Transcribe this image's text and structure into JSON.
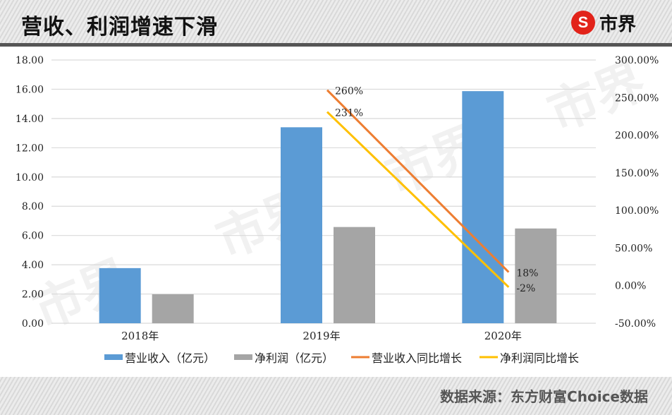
{
  "header": {
    "title": "营收、利润增速下滑",
    "logo_mark": "S",
    "logo_text": "市界"
  },
  "footer": {
    "source": "数据来源：东方财富Choice数据"
  },
  "colors": {
    "revenue_bar": "#5b9bd5",
    "profit_bar": "#a5a5a5",
    "revenue_growth_line": "#ed7d31",
    "profit_growth_line": "#ffc000",
    "gridline": "#d9d9d9",
    "logo_red": "#e2231a"
  },
  "chart_data": {
    "type": "bar",
    "title": "营收、利润增速下滑",
    "categories": [
      "2018年",
      "2019年",
      "2020年"
    ],
    "series": [
      {
        "name": "营业收入（亿元）",
        "type": "bar",
        "axis": "left",
        "values": [
          3.77,
          13.4,
          15.87
        ]
      },
      {
        "name": "净利润（亿元）",
        "type": "bar",
        "axis": "left",
        "values": [
          1.98,
          6.58,
          6.48
        ]
      },
      {
        "name": "营业收入同比增长",
        "type": "line",
        "axis": "right",
        "values": [
          null,
          260,
          18
        ],
        "labels": [
          "",
          "260%",
          "18%"
        ]
      },
      {
        "name": "净利润同比增长",
        "type": "line",
        "axis": "right",
        "values": [
          null,
          231,
          -2
        ],
        "labels": [
          "",
          "231%",
          "-2%"
        ]
      }
    ],
    "left_axis": {
      "ylim": [
        0,
        18
      ],
      "ticks": [
        "0.00",
        "2.00",
        "4.00",
        "6.00",
        "8.00",
        "10.00",
        "12.00",
        "14.00",
        "16.00",
        "18.00"
      ]
    },
    "right_axis": {
      "ylim": [
        -50,
        300
      ],
      "ticks": [
        "-50.00%",
        "0.00%",
        "50.00%",
        "100.00%",
        "150.00%",
        "200.00%",
        "250.00%",
        "300.00%"
      ]
    },
    "xlabel": "",
    "ylabel": "",
    "grid": true,
    "legend_position": "bottom"
  }
}
